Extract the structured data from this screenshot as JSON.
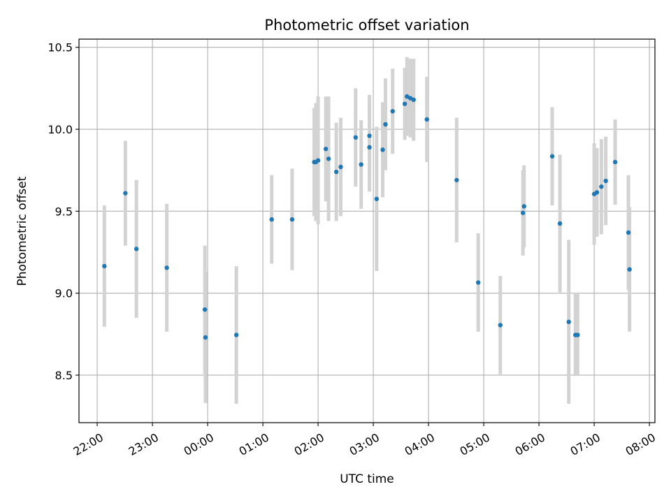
{
  "chart_data": {
    "type": "scatter",
    "title": "Photometric offset variation",
    "xlabel": "UTC time",
    "ylabel": "Photometric offset",
    "x_tick_labels": [
      "22:00",
      "23:00",
      "00:00",
      "01:00",
      "02:00",
      "03:00",
      "04:00",
      "05:00",
      "06:00",
      "07:00",
      "08:00"
    ],
    "x_tick_hours": [
      -2,
      -1,
      0,
      1,
      2,
      3,
      4,
      5,
      6,
      7,
      8
    ],
    "x_range_hours": [
      -2.33,
      8.1
    ],
    "y_ticks": [
      8.5,
      9.0,
      9.5,
      10.0,
      10.5
    ],
    "y_tick_labels": [
      "8.5",
      "9.0",
      "9.5",
      "10.0",
      "10.5"
    ],
    "ylim": [
      8.21,
      10.55
    ],
    "grid": true,
    "point_color": "#1f77b4",
    "errorbar_color": "#d3d3d3",
    "points": [
      {
        "x": -1.87,
        "y": 9.165,
        "err": 0.37
      },
      {
        "x": -1.49,
        "y": 9.61,
        "err": 0.32
      },
      {
        "x": -1.29,
        "y": 9.27,
        "err": 0.42
      },
      {
        "x": -0.74,
        "y": 9.155,
        "err": 0.39
      },
      {
        "x": -0.05,
        "y": 8.9,
        "err": 0.39
      },
      {
        "x": -0.04,
        "y": 8.73,
        "err": 0.4
      },
      {
        "x": 0.52,
        "y": 8.745,
        "err": 0.42
      },
      {
        "x": 1.16,
        "y": 9.45,
        "err": 0.27
      },
      {
        "x": 1.53,
        "y": 9.45,
        "err": 0.31
      },
      {
        "x": 1.93,
        "y": 9.8,
        "err": 0.33
      },
      {
        "x": 1.96,
        "y": 9.8,
        "err": 0.36
      },
      {
        "x": 2.0,
        "y": 9.81,
        "err": 0.39
      },
      {
        "x": 2.14,
        "y": 9.88,
        "err": 0.32
      },
      {
        "x": 2.19,
        "y": 9.82,
        "err": 0.38
      },
      {
        "x": 2.33,
        "y": 9.74,
        "err": 0.3
      },
      {
        "x": 2.41,
        "y": 9.77,
        "err": 0.3
      },
      {
        "x": 2.68,
        "y": 9.95,
        "err": 0.3
      },
      {
        "x": 2.78,
        "y": 9.785,
        "err": 0.27
      },
      {
        "x": 2.93,
        "y": 9.96,
        "err": 0.25
      },
      {
        "x": 2.93,
        "y": 9.89,
        "err": 0.27
      },
      {
        "x": 3.06,
        "y": 9.575,
        "err": 0.44
      },
      {
        "x": 3.17,
        "y": 9.875,
        "err": 0.29
      },
      {
        "x": 3.22,
        "y": 10.03,
        "err": 0.28
      },
      {
        "x": 3.35,
        "y": 10.11,
        "err": 0.26
      },
      {
        "x": 3.57,
        "y": 10.155,
        "err": 0.22
      },
      {
        "x": 3.61,
        "y": 10.2,
        "err": 0.24
      },
      {
        "x": 3.67,
        "y": 10.19,
        "err": 0.24
      },
      {
        "x": 3.73,
        "y": 10.18,
        "err": 0.25
      },
      {
        "x": 3.97,
        "y": 10.06,
        "err": 0.26
      },
      {
        "x": 4.51,
        "y": 9.69,
        "err": 0.38
      },
      {
        "x": 4.9,
        "y": 9.065,
        "err": 0.3
      },
      {
        "x": 5.3,
        "y": 8.805,
        "err": 0.3
      },
      {
        "x": 5.71,
        "y": 9.49,
        "err": 0.26
      },
      {
        "x": 5.73,
        "y": 9.53,
        "err": 0.25
      },
      {
        "x": 6.24,
        "y": 9.835,
        "err": 0.3
      },
      {
        "x": 6.38,
        "y": 9.425,
        "err": 0.42
      },
      {
        "x": 6.54,
        "y": 8.825,
        "err": 0.5
      },
      {
        "x": 6.66,
        "y": 8.745,
        "err": 0.25
      },
      {
        "x": 6.7,
        "y": 8.745,
        "err": 0.25
      },
      {
        "x": 7.0,
        "y": 9.605,
        "err": 0.31
      },
      {
        "x": 7.05,
        "y": 9.615,
        "err": 0.27
      },
      {
        "x": 7.13,
        "y": 9.65,
        "err": 0.29
      },
      {
        "x": 7.21,
        "y": 9.685,
        "err": 0.27
      },
      {
        "x": 7.38,
        "y": 9.8,
        "err": 0.26
      },
      {
        "x": 7.62,
        "y": 9.37,
        "err": 0.35
      },
      {
        "x": 7.64,
        "y": 9.145,
        "err": 0.38
      }
    ]
  }
}
